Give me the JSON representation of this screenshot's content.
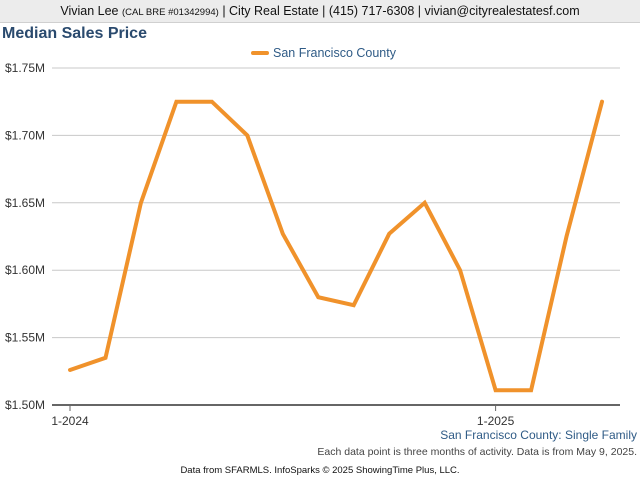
{
  "header": {
    "agent_name": "Vivian Lee",
    "license": "(CAL BRE #01342994)",
    "rest": "| City Real Estate | (415) 717-6308 | vivian@cityrealestatesf.com"
  },
  "colors": {
    "series": "#f0922b",
    "title": "#2a4a6e",
    "grid": "#c8c8c8",
    "axis": "#666666"
  },
  "chart_data": {
    "type": "line",
    "title": "Median Sales Price",
    "subtitle": "San Francisco County: Single Family",
    "note": "Each data point is three months of activity. Data is from May 9, 2025.",
    "x_tick_labels": [
      "1-2024",
      "1-2025"
    ],
    "y_ticks": [
      1500000,
      1550000,
      1600000,
      1650000,
      1700000,
      1750000
    ],
    "y_tick_labels": [
      "$1.50M",
      "$1.55M",
      "$1.60M",
      "$1.65M",
      "$1.70M",
      "$1.75M"
    ],
    "ylim": [
      1500000,
      1750000
    ],
    "legend_position": "top-center",
    "grid": true,
    "categories": [
      "1-2024",
      "2-2024",
      "3-2024",
      "4-2024",
      "5-2024",
      "6-2024",
      "7-2024",
      "8-2024",
      "9-2024",
      "10-2024",
      "11-2024",
      "12-2024",
      "1-2025",
      "2-2025",
      "3-2025",
      "4-2025"
    ],
    "series": [
      {
        "name": "San Francisco County",
        "values": [
          1526000,
          1535000,
          1650000,
          1725000,
          1725000,
          1700000,
          1627000,
          1580000,
          1574000,
          1627000,
          1650000,
          1600000,
          1511000,
          1511000,
          1625000,
          1725000
        ]
      }
    ]
  },
  "footer": {
    "text": "Data from SFARMLS. InfoSparks © 2025 ShowingTime Plus, LLC."
  }
}
